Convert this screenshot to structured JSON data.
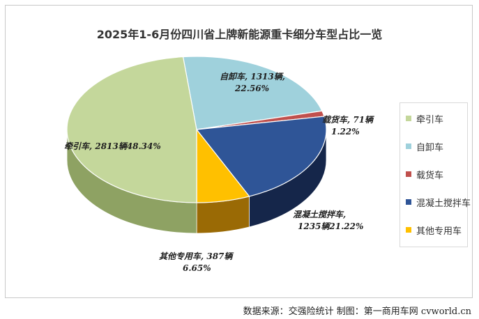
{
  "title": "2025年1-6月份四川省上牌新能源重卡细分车型占比一览",
  "source": "数据来源：交强险统计  制图：第一商用车网 cvworld.cn",
  "chart_data": {
    "type": "pie",
    "title": "2025年1-6月份四川省上牌新能源重卡细分车型占比一览",
    "legend_position": "right",
    "slices": [
      {
        "name": "牵引车",
        "count": 2813,
        "percent": 48.34,
        "color": "#c4d79b",
        "side_color": "#8ea263",
        "label_lines": [
          "牵引车, 2813辆48.34%"
        ]
      },
      {
        "name": "自卸车",
        "count": 1313,
        "percent": 22.56,
        "color": "#9fd1dc",
        "side_color": "#6aa3b0",
        "label_lines": [
          "自卸车, 1313辆,",
          "22.56%"
        ]
      },
      {
        "name": "载货车",
        "count": 71,
        "percent": 1.22,
        "color": "#c0504d",
        "side_color": "#7e2a28",
        "label_lines": [
          "载货车, 71辆",
          "1.22%"
        ]
      },
      {
        "name": "混凝土搅拌车",
        "count": 1235,
        "percent": 21.22,
        "color": "#2f5597",
        "side_color": "#15264a",
        "label_lines": [
          "混凝土搅拌车,",
          "1235辆21.22%"
        ]
      },
      {
        "name": "其他专用车",
        "count": 387,
        "percent": 6.65,
        "color": "#ffc000",
        "side_color": "#9a6a05",
        "label_lines": [
          "其他专用车, 387辆",
          "6.65%"
        ]
      }
    ]
  }
}
